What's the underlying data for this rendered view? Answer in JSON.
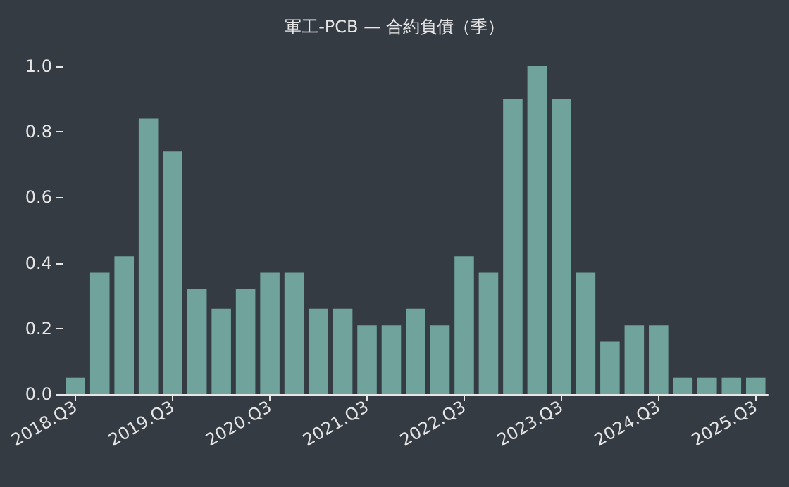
{
  "chart_data": {
    "type": "bar",
    "title": "軍工-PCB — 合約負債（季）",
    "categories": [
      "2018.Q3",
      null,
      null,
      null,
      "2019.Q3",
      null,
      null,
      null,
      "2020.Q3",
      null,
      null,
      null,
      "2021.Q3",
      null,
      null,
      null,
      "2022.Q3",
      null,
      null,
      null,
      "2023.Q3",
      null,
      null,
      null,
      "2024.Q3",
      null,
      null,
      null,
      "2025.Q3"
    ],
    "values": [
      0.05,
      0.37,
      0.42,
      0.84,
      0.74,
      0.32,
      0.26,
      0.32,
      0.37,
      0.37,
      0.26,
      0.26,
      0.21,
      0.21,
      0.26,
      0.21,
      0.42,
      0.37,
      0.9,
      1.0,
      0.9,
      0.37,
      0.16,
      0.21,
      0.21,
      0.05,
      0.05,
      0.05,
      0.05
    ],
    "color": "#6fa39c",
    "ylim": [
      0,
      1
    ],
    "yticks": [
      {
        "value": 0,
        "label": "0.0"
      },
      {
        "value": 0.2,
        "label": "0.2"
      },
      {
        "value": 0.4,
        "label": "0.4"
      },
      {
        "value": 0.6,
        "label": "0.6"
      },
      {
        "value": 0.8,
        "label": "0.8"
      },
      {
        "value": 1,
        "label": "1.0"
      }
    ],
    "grid": false
  }
}
